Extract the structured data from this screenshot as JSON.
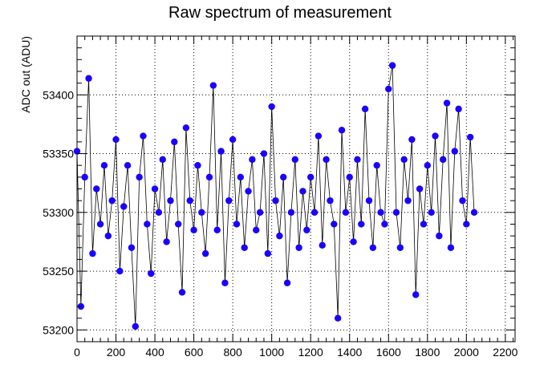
{
  "chart_data": {
    "type": "scatter",
    "title": "Raw spectrum of measurement",
    "xlabel": "",
    "ylabel": "ADC out (ADU)",
    "xlim": [
      0,
      2250
    ],
    "ylim": [
      53190,
      53450
    ],
    "x_ticks": [
      0,
      200,
      400,
      600,
      800,
      1000,
      1200,
      1400,
      1600,
      1800,
      2000,
      2200
    ],
    "x_tick_labels": [
      "0",
      "200",
      "400",
      "600",
      "800",
      "1000",
      "1200",
      "1400",
      "1600",
      "1800",
      "2000",
      "2200"
    ],
    "y_ticks": [
      53200,
      53250,
      53300,
      53350,
      53400
    ],
    "y_tick_labels": [
      "53200",
      "53250",
      "53300",
      "53350",
      "53400"
    ],
    "grid": true,
    "marker_color": "#1a00ff",
    "line_color": "#000000",
    "series": [
      {
        "x": [
          0,
          20,
          40,
          60,
          80,
          100,
          120,
          140,
          160,
          180,
          200,
          220,
          240,
          260,
          280,
          300,
          320,
          340,
          360,
          380,
          400,
          420,
          440,
          460,
          480,
          500,
          520,
          540,
          560,
          580,
          600,
          620,
          640,
          660,
          680,
          700,
          720,
          740,
          760,
          780,
          800,
          820,
          840,
          860,
          880,
          900,
          920,
          940,
          960,
          980,
          1000,
          1020,
          1040,
          1060,
          1080,
          1100,
          1120,
          1140,
          1160,
          1180,
          1200,
          1220,
          1240,
          1260,
          1280,
          1300,
          1320,
          1340,
          1360,
          1380,
          1400,
          1420,
          1440,
          1460,
          1480,
          1500,
          1520,
          1540,
          1560,
          1580,
          1600,
          1620,
          1640,
          1660,
          1680,
          1700,
          1720,
          1740,
          1760,
          1780,
          1800,
          1820,
          1840,
          1860,
          1880,
          1900,
          1920,
          1940,
          1960,
          1980,
          2000,
          2020,
          2040
        ],
        "y": [
          53352,
          53220,
          53330,
          53414,
          53265,
          53320,
          53290,
          53340,
          53280,
          53310,
          53362,
          53250,
          53305,
          53340,
          53270,
          53203,
          53330,
          53365,
          53290,
          53248,
          53320,
          53300,
          53345,
          53275,
          53310,
          53360,
          53290,
          53232,
          53372,
          53310,
          53285,
          53340,
          53300,
          53265,
          53330,
          53408,
          53285,
          53352,
          53240,
          53310,
          53362,
          53290,
          53330,
          53270,
          53318,
          53345,
          53285,
          53300,
          53350,
          53265,
          53390,
          53310,
          53280,
          53330,
          53240,
          53300,
          53345,
          53270,
          53318,
          53285,
          53330,
          53300,
          53365,
          53272,
          53345,
          53310,
          53290,
          53210,
          53370,
          53300,
          53330,
          53275,
          53345,
          53290,
          53388,
          53310,
          53270,
          53340,
          53300,
          53290,
          53405,
          53425,
          53300,
          53270,
          53345,
          53310,
          53362,
          53230,
          53320,
          53290,
          53340,
          53300,
          53365,
          53280,
          53345,
          53393,
          53270,
          53352,
          53388,
          53310,
          53290,
          53364,
          53300
        ]
      }
    ]
  }
}
